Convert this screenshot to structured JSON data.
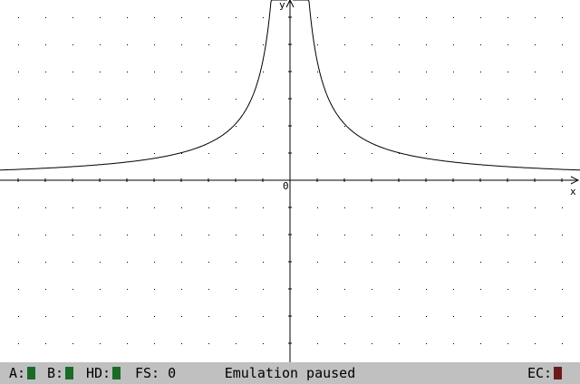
{
  "plot": {
    "x_axis_label": "x",
    "y_axis_label": "y",
    "origin_label": "0",
    "axis_color": "#000000",
    "grid_dot_color": "#000000",
    "curve_color": "#000000",
    "grid_dots": true,
    "curve_description": "y = 1/|x| style peak centred at origin"
  },
  "chart_data": {
    "type": "line",
    "title": "",
    "xlabel": "x",
    "ylabel": "y",
    "function": "k/|x|",
    "k": 4,
    "xlim": [
      -10.7,
      10.7
    ],
    "ylim": [
      -6.7,
      6.7
    ],
    "grid": true
  },
  "status_bar": {
    "background": "#c0c0c0",
    "drive_a_label": "A:",
    "drive_b_label": "B:",
    "hd_label": "HD:",
    "fs_label": "FS:",
    "fs_value": "0",
    "message": "Emulation paused",
    "ec_label": "EC:",
    "led_green": "#1a6b2a",
    "led_red": "#6b1a1a"
  }
}
